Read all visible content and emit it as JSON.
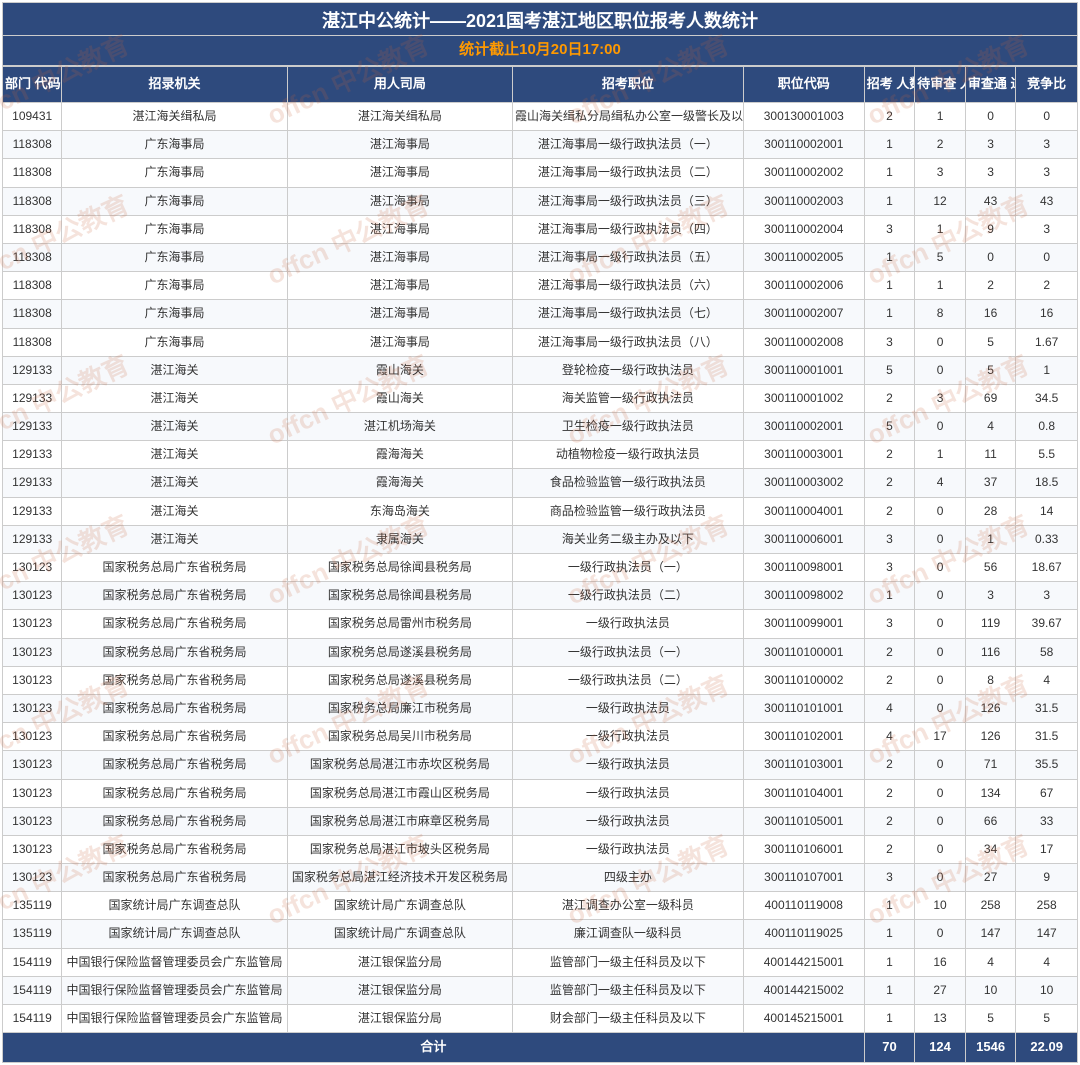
{
  "title": "湛江中公统计——2021国考湛江地区职位报考人数统计",
  "subtitle": "统计截止10月20日17:00",
  "watermark_text": "offcn 中公教育",
  "colors": {
    "header_bg": "#2e4a7d",
    "header_fg": "#ffffff",
    "subtitle_fg": "#ff9900",
    "row_alt_bg": "#f7f9fc",
    "border": "#cccccc"
  },
  "columns": [
    {
      "key": "dept",
      "label": "部门\n代码"
    },
    {
      "key": "org",
      "label": "招录机关"
    },
    {
      "key": "unit",
      "label": "用人司局"
    },
    {
      "key": "pos",
      "label": "招考职位"
    },
    {
      "key": "code",
      "label": "职位代码"
    },
    {
      "key": "recruit",
      "label": "招考\n人数"
    },
    {
      "key": "pending",
      "label": "待审查\n人数"
    },
    {
      "key": "passed",
      "label": "审查通\n过人数"
    },
    {
      "key": "ratio",
      "label": "竞争比"
    }
  ],
  "rows": [
    {
      "dept": "109431",
      "org": "湛江海关缉私局",
      "unit": "湛江海关缉私局",
      "pos": "霞山海关缉私分局缉私办公室一级警长及以下",
      "code": "300130001003",
      "recruit": "2",
      "pending": "1",
      "passed": "0",
      "ratio": "0"
    },
    {
      "dept": "118308",
      "org": "广东海事局",
      "unit": "湛江海事局",
      "pos": "湛江海事局一级行政执法员（一）",
      "code": "300110002001",
      "recruit": "1",
      "pending": "2",
      "passed": "3",
      "ratio": "3"
    },
    {
      "dept": "118308",
      "org": "广东海事局",
      "unit": "湛江海事局",
      "pos": "湛江海事局一级行政执法员（二）",
      "code": "300110002002",
      "recruit": "1",
      "pending": "3",
      "passed": "3",
      "ratio": "3"
    },
    {
      "dept": "118308",
      "org": "广东海事局",
      "unit": "湛江海事局",
      "pos": "湛江海事局一级行政执法员（三）",
      "code": "300110002003",
      "recruit": "1",
      "pending": "12",
      "passed": "43",
      "ratio": "43"
    },
    {
      "dept": "118308",
      "org": "广东海事局",
      "unit": "湛江海事局",
      "pos": "湛江海事局一级行政执法员（四）",
      "code": "300110002004",
      "recruit": "3",
      "pending": "1",
      "passed": "9",
      "ratio": "3"
    },
    {
      "dept": "118308",
      "org": "广东海事局",
      "unit": "湛江海事局",
      "pos": "湛江海事局一级行政执法员（五）",
      "code": "300110002005",
      "recruit": "1",
      "pending": "5",
      "passed": "0",
      "ratio": "0"
    },
    {
      "dept": "118308",
      "org": "广东海事局",
      "unit": "湛江海事局",
      "pos": "湛江海事局一级行政执法员（六）",
      "code": "300110002006",
      "recruit": "1",
      "pending": "1",
      "passed": "2",
      "ratio": "2"
    },
    {
      "dept": "118308",
      "org": "广东海事局",
      "unit": "湛江海事局",
      "pos": "湛江海事局一级行政执法员（七）",
      "code": "300110002007",
      "recruit": "1",
      "pending": "8",
      "passed": "16",
      "ratio": "16"
    },
    {
      "dept": "118308",
      "org": "广东海事局",
      "unit": "湛江海事局",
      "pos": "湛江海事局一级行政执法员（八）",
      "code": "300110002008",
      "recruit": "3",
      "pending": "0",
      "passed": "5",
      "ratio": "1.67"
    },
    {
      "dept": "129133",
      "org": "湛江海关",
      "unit": "霞山海关",
      "pos": "登轮检疫一级行政执法员",
      "code": "300110001001",
      "recruit": "5",
      "pending": "0",
      "passed": "5",
      "ratio": "1"
    },
    {
      "dept": "129133",
      "org": "湛江海关",
      "unit": "霞山海关",
      "pos": "海关监管一级行政执法员",
      "code": "300110001002",
      "recruit": "2",
      "pending": "3",
      "passed": "69",
      "ratio": "34.5"
    },
    {
      "dept": "129133",
      "org": "湛江海关",
      "unit": "湛江机场海关",
      "pos": "卫生检疫一级行政执法员",
      "code": "300110002001",
      "recruit": "5",
      "pending": "0",
      "passed": "4",
      "ratio": "0.8"
    },
    {
      "dept": "129133",
      "org": "湛江海关",
      "unit": "霞海海关",
      "pos": "动植物检疫一级行政执法员",
      "code": "300110003001",
      "recruit": "2",
      "pending": "1",
      "passed": "11",
      "ratio": "5.5"
    },
    {
      "dept": "129133",
      "org": "湛江海关",
      "unit": "霞海海关",
      "pos": "食品检验监管一级行政执法员",
      "code": "300110003002",
      "recruit": "2",
      "pending": "4",
      "passed": "37",
      "ratio": "18.5"
    },
    {
      "dept": "129133",
      "org": "湛江海关",
      "unit": "东海岛海关",
      "pos": "商品检验监管一级行政执法员",
      "code": "300110004001",
      "recruit": "2",
      "pending": "0",
      "passed": "28",
      "ratio": "14"
    },
    {
      "dept": "129133",
      "org": "湛江海关",
      "unit": "隶属海关",
      "pos": "海关业务二级主办及以下",
      "code": "300110006001",
      "recruit": "3",
      "pending": "0",
      "passed": "1",
      "ratio": "0.33"
    },
    {
      "dept": "130123",
      "org": "国家税务总局广东省税务局",
      "unit": "国家税务总局徐闻县税务局",
      "pos": "一级行政执法员（一）",
      "code": "300110098001",
      "recruit": "3",
      "pending": "0",
      "passed": "56",
      "ratio": "18.67"
    },
    {
      "dept": "130123",
      "org": "国家税务总局广东省税务局",
      "unit": "国家税务总局徐闻县税务局",
      "pos": "一级行政执法员（二）",
      "code": "300110098002",
      "recruit": "1",
      "pending": "0",
      "passed": "3",
      "ratio": "3"
    },
    {
      "dept": "130123",
      "org": "国家税务总局广东省税务局",
      "unit": "国家税务总局雷州市税务局",
      "pos": "一级行政执法员",
      "code": "300110099001",
      "recruit": "3",
      "pending": "0",
      "passed": "119",
      "ratio": "39.67"
    },
    {
      "dept": "130123",
      "org": "国家税务总局广东省税务局",
      "unit": "国家税务总局遂溪县税务局",
      "pos": "一级行政执法员（一）",
      "code": "300110100001",
      "recruit": "2",
      "pending": "0",
      "passed": "116",
      "ratio": "58"
    },
    {
      "dept": "130123",
      "org": "国家税务总局广东省税务局",
      "unit": "国家税务总局遂溪县税务局",
      "pos": "一级行政执法员（二）",
      "code": "300110100002",
      "recruit": "2",
      "pending": "0",
      "passed": "8",
      "ratio": "4"
    },
    {
      "dept": "130123",
      "org": "国家税务总局广东省税务局",
      "unit": "国家税务总局廉江市税务局",
      "pos": "一级行政执法员",
      "code": "300110101001",
      "recruit": "4",
      "pending": "0",
      "passed": "126",
      "ratio": "31.5"
    },
    {
      "dept": "130123",
      "org": "国家税务总局广东省税务局",
      "unit": "国家税务总局吴川市税务局",
      "pos": "一级行政执法员",
      "code": "300110102001",
      "recruit": "4",
      "pending": "17",
      "passed": "126",
      "ratio": "31.5"
    },
    {
      "dept": "130123",
      "org": "国家税务总局广东省税务局",
      "unit": "国家税务总局湛江市赤坎区税务局",
      "pos": "一级行政执法员",
      "code": "300110103001",
      "recruit": "2",
      "pending": "0",
      "passed": "71",
      "ratio": "35.5"
    },
    {
      "dept": "130123",
      "org": "国家税务总局广东省税务局",
      "unit": "国家税务总局湛江市霞山区税务局",
      "pos": "一级行政执法员",
      "code": "300110104001",
      "recruit": "2",
      "pending": "0",
      "passed": "134",
      "ratio": "67"
    },
    {
      "dept": "130123",
      "org": "国家税务总局广东省税务局",
      "unit": "国家税务总局湛江市麻章区税务局",
      "pos": "一级行政执法员",
      "code": "300110105001",
      "recruit": "2",
      "pending": "0",
      "passed": "66",
      "ratio": "33"
    },
    {
      "dept": "130123",
      "org": "国家税务总局广东省税务局",
      "unit": "国家税务总局湛江市坡头区税务局",
      "pos": "一级行政执法员",
      "code": "300110106001",
      "recruit": "2",
      "pending": "0",
      "passed": "34",
      "ratio": "17"
    },
    {
      "dept": "130123",
      "org": "国家税务总局广东省税务局",
      "unit": "国家税务总局湛江经济技术开发区税务局",
      "pos": "四级主办",
      "code": "300110107001",
      "recruit": "3",
      "pending": "0",
      "passed": "27",
      "ratio": "9"
    },
    {
      "dept": "135119",
      "org": "国家统计局广东调查总队",
      "unit": "国家统计局广东调查总队",
      "pos": "湛江调查办公室一级科员",
      "code": "400110119008",
      "recruit": "1",
      "pending": "10",
      "passed": "258",
      "ratio": "258"
    },
    {
      "dept": "135119",
      "org": "国家统计局广东调查总队",
      "unit": "国家统计局广东调查总队",
      "pos": "廉江调查队一级科员",
      "code": "400110119025",
      "recruit": "1",
      "pending": "0",
      "passed": "147",
      "ratio": "147"
    },
    {
      "dept": "154119",
      "org": "中国银行保险监督管理委员会广东监管局",
      "unit": "湛江银保监分局",
      "pos": "监管部门一级主任科员及以下",
      "code": "400144215001",
      "recruit": "1",
      "pending": "16",
      "passed": "4",
      "ratio": "4"
    },
    {
      "dept": "154119",
      "org": "中国银行保险监督管理委员会广东监管局",
      "unit": "湛江银保监分局",
      "pos": "监管部门一级主任科员及以下",
      "code": "400144215002",
      "recruit": "1",
      "pending": "27",
      "passed": "10",
      "ratio": "10"
    },
    {
      "dept": "154119",
      "org": "中国银行保险监督管理委员会广东监管局",
      "unit": "湛江银保监分局",
      "pos": "财会部门一级主任科员及以下",
      "code": "400145215001",
      "recruit": "1",
      "pending": "13",
      "passed": "5",
      "ratio": "5"
    }
  ],
  "footer": {
    "label": "合计",
    "recruit": "70",
    "pending": "124",
    "passed": "1546",
    "ratio": "22.09"
  }
}
